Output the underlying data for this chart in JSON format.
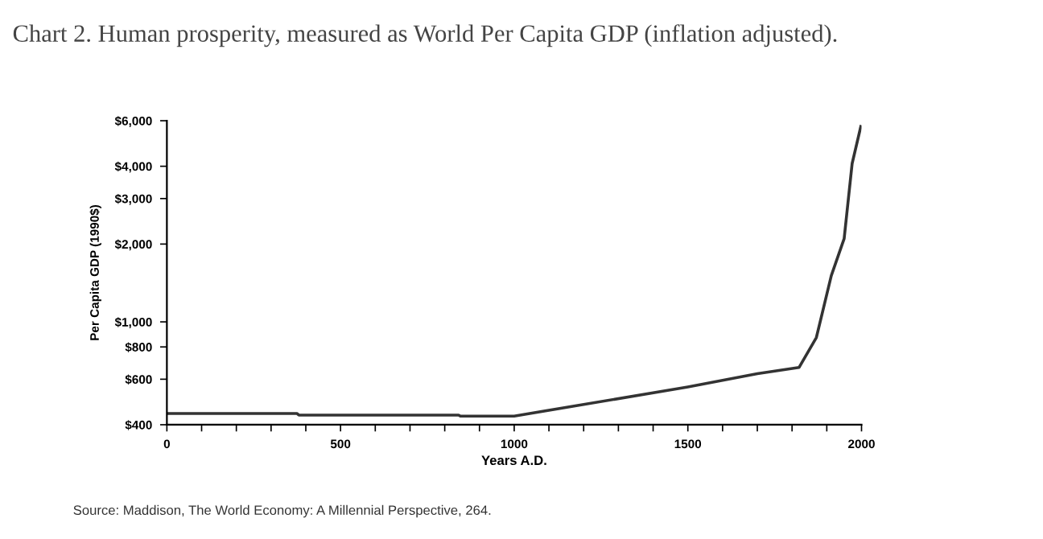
{
  "chart_data": {
    "type": "line",
    "title": "Chart 2. Human prosperity, measured as World Per Capita GDP (inflation adjusted).",
    "xlabel": "Years A.D.",
    "ylabel": "Per Capita GDP (1990$)",
    "annotations": [
      "Source: Maddison, The World Economy: A Millennial Perspective, 264."
    ],
    "log": "y",
    "grid": false,
    "marker": "none",
    "line_style": "solid",
    "series": [
      {
        "color": "#333333",
        "x": [
          0,
          375,
          380,
          840,
          845,
          1000,
          1500,
          1700,
          1820,
          1870,
          1913,
          1950,
          1973,
          1998
        ],
        "values": [
          442,
          442,
          436,
          436,
          432,
          432,
          560,
          630,
          666,
          870,
          1510,
          2100,
          4100,
          5700
        ]
      }
    ],
    "xlim": [
      0,
      2000
    ],
    "xticks": [
      0,
      {
        "value": 100,
        "label": null
      },
      {
        "value": 200,
        "label": null
      },
      {
        "value": 300,
        "label": null
      },
      {
        "value": 400,
        "label": null
      },
      500,
      {
        "value": 600,
        "label": null
      },
      {
        "value": 700,
        "label": null
      },
      {
        "value": 800,
        "label": null
      },
      {
        "value": 900,
        "label": null
      },
      1000,
      {
        "value": 1100,
        "label": null
      },
      {
        "value": 1200,
        "label": null
      },
      {
        "value": 1300,
        "label": null
      },
      {
        "value": 1400,
        "label": null
      },
      1500,
      {
        "value": 1600,
        "label": null
      },
      {
        "value": 1700,
        "label": null
      },
      {
        "value": 1800,
        "label": null
      },
      {
        "value": 1900,
        "label": null
      },
      2000
    ],
    "ylim": [
      400,
      6000
    ],
    "yticks": [
      {
        "value": 400,
        "label": "$400"
      },
      {
        "value": 600,
        "label": "$600"
      },
      {
        "value": 800,
        "label": "$800"
      },
      {
        "value": 1000,
        "label": "$1,000"
      },
      {
        "value": 2000,
        "label": "$2,000"
      },
      {
        "value": 3000,
        "label": "$3,000"
      },
      {
        "value": 4000,
        "label": "$4,000"
      },
      {
        "value": 6000,
        "label": "$6,000"
      }
    ]
  }
}
